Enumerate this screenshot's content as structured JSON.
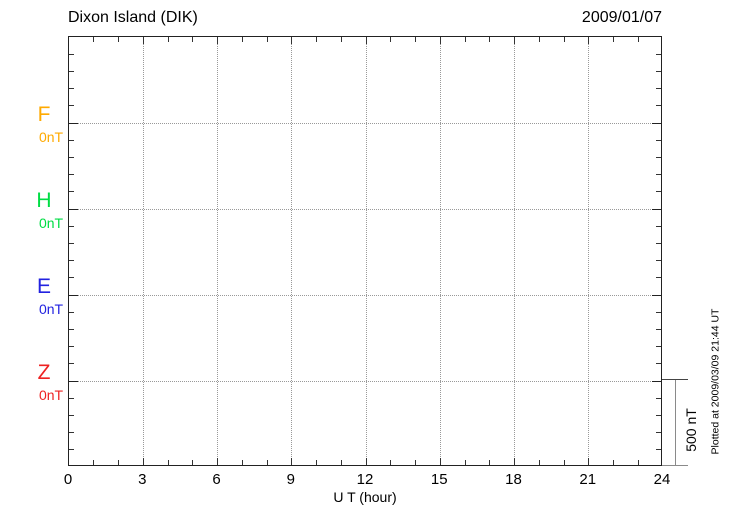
{
  "header": {
    "title": "Dixon Island (DIK)",
    "date": "2009/01/07"
  },
  "chart_data": {
    "type": "line",
    "title": "Dixon Island (DIK)",
    "date": "2009/01/07",
    "xlabel": "U T (hour)",
    "xlim": [
      0,
      24
    ],
    "x_ticks": [
      0,
      3,
      6,
      9,
      12,
      15,
      18,
      21,
      24
    ],
    "x_major_step_hours": 3,
    "x_minor_step_hours": 1,
    "grid": "dotted",
    "channel_spacing_nT": 500,
    "y_minor_tick_nT": 100,
    "channels": [
      {
        "name": "F",
        "baseline_label": "0nT",
        "color": "#FFAA00",
        "values": []
      },
      {
        "name": "H",
        "baseline_label": "0nT",
        "color": "#00DD44",
        "values": []
      },
      {
        "name": "E",
        "baseline_label": "0nT",
        "color": "#2222E0",
        "values": []
      },
      {
        "name": "Z",
        "baseline_label": "0nT",
        "color": "#EE2222",
        "values": []
      }
    ],
    "scale_bar": {
      "label": "500 nT",
      "span_nT": 500
    }
  },
  "footer": {
    "plotted_at": "Plotted at 2009/03/09 21:44 UT"
  }
}
